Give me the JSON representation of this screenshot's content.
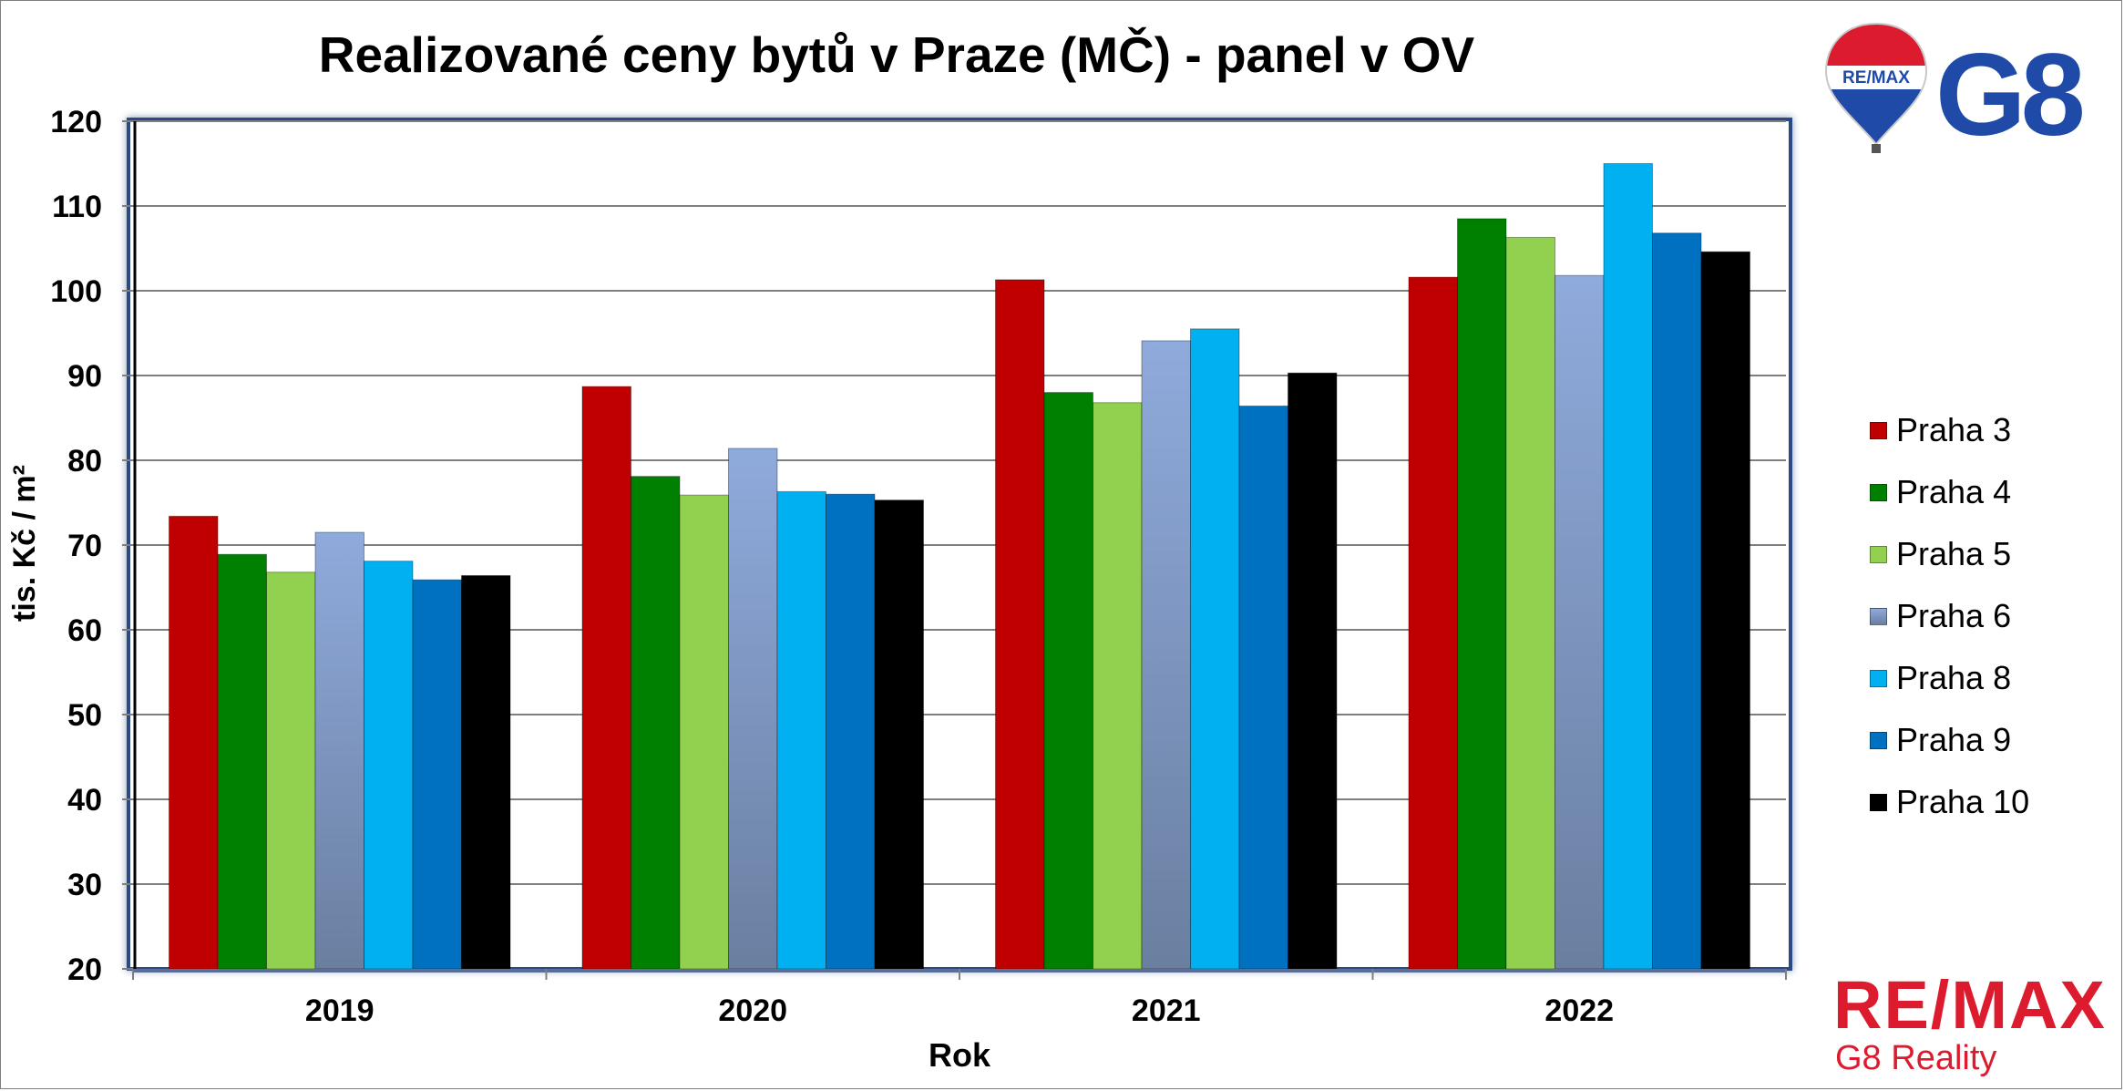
{
  "chart_data": {
    "type": "bar",
    "title": "Realizované ceny bytů v Praze (MČ) - panel v OV",
    "xlabel": "Rok",
    "ylabel": "tis. Kč / m²",
    "ylim": [
      20,
      120
    ],
    "yticks": [
      "20",
      "30",
      "40",
      "50",
      "60",
      "70",
      "80",
      "90",
      "100",
      "110",
      "120"
    ],
    "categories": [
      "2019",
      "2020",
      "2021",
      "2022"
    ],
    "grid": true,
    "legend_position": "right",
    "series": [
      {
        "name": "Praha 3",
        "color": "#c00000",
        "values": [
          73.4,
          88.7,
          101.3,
          101.6
        ]
      },
      {
        "name": "Praha 4",
        "color": "#008000",
        "values": [
          68.9,
          78.1,
          88.0,
          108.5
        ]
      },
      {
        "name": "Praha 5",
        "color": "#92d050",
        "values": [
          66.8,
          75.9,
          86.8,
          106.3
        ]
      },
      {
        "name": "Praha 6",
        "color": "#8faadc",
        "gradient_to": "#6a7fa0",
        "values": [
          71.5,
          81.4,
          94.1,
          101.8
        ]
      },
      {
        "name": "Praha 8",
        "color": "#00b0f0",
        "values": [
          68.1,
          76.3,
          95.5,
          115.0
        ]
      },
      {
        "name": "Praha 9",
        "color": "#0070c0",
        "values": [
          65.9,
          76.0,
          86.4,
          106.8
        ]
      },
      {
        "name": "Praha 10",
        "color": "#000000",
        "values": [
          66.4,
          75.3,
          90.3,
          104.6
        ]
      }
    ]
  },
  "logos": {
    "top_brand_text": "RE/MAX",
    "top_brand_mark": "G8",
    "bottom_brand_text": "RE/MAX",
    "bottom_brand_sub": "G8 Reality",
    "balloon_colors": [
      "#dc1c2e",
      "#ffffff",
      "#1f4aa8"
    ],
    "mark_color": "#1f4aa8",
    "brand_red": "#dc1c2e"
  }
}
